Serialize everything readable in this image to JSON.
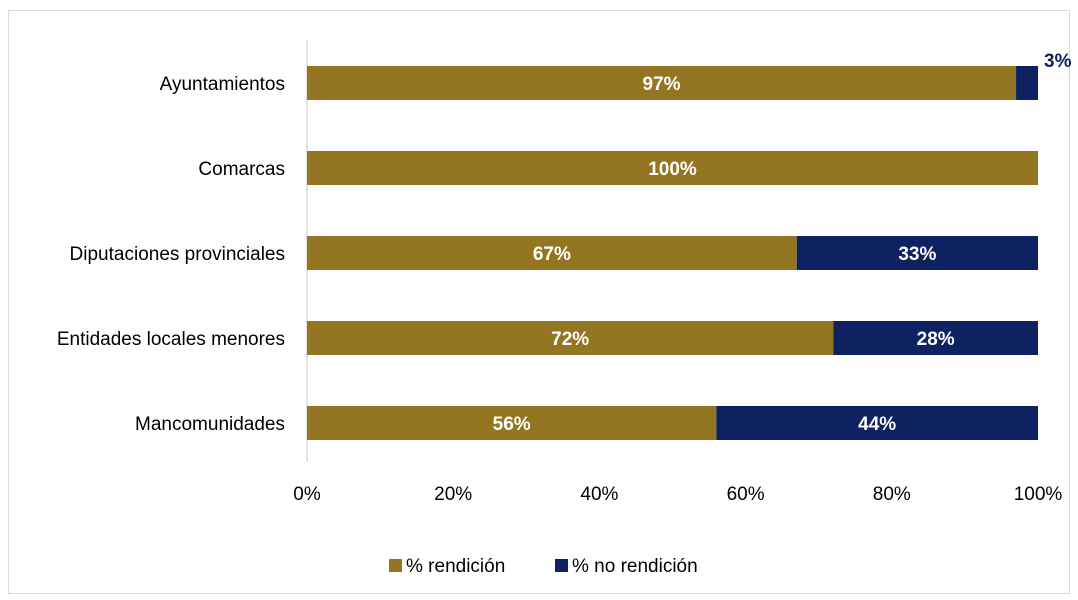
{
  "chart_data": {
    "type": "bar",
    "orientation": "horizontal",
    "stacked": true,
    "categories": [
      "Ayuntamientos",
      "Comarcas",
      "Diputaciones provinciales",
      "Entidades locales menores",
      "Mancomunidades"
    ],
    "series": [
      {
        "name": "% rendición",
        "values": [
          97,
          100,
          67,
          72,
          56
        ],
        "color": "#947521",
        "labels": [
          "97%",
          "100%",
          "67%",
          "72%",
          "56%"
        ],
        "label_color": "#ffffff"
      },
      {
        "name": "% no rendición",
        "values": [
          3,
          0,
          33,
          28,
          44
        ],
        "color": "#0e2160",
        "labels": [
          "3%",
          "",
          "33%",
          "28%",
          "44%"
        ],
        "label_color": "#ffffff",
        "outside_label_color": "#0e2160"
      }
    ],
    "xlim": [
      0,
      100
    ],
    "xticks": [
      "0%",
      "20%",
      "40%",
      "60%",
      "80%",
      "100%"
    ],
    "xtick_values": [
      0,
      20,
      40,
      60,
      80,
      100
    ],
    "grid": false,
    "legend_position": "bottom",
    "title": "",
    "xlabel": "",
    "ylabel": ""
  }
}
